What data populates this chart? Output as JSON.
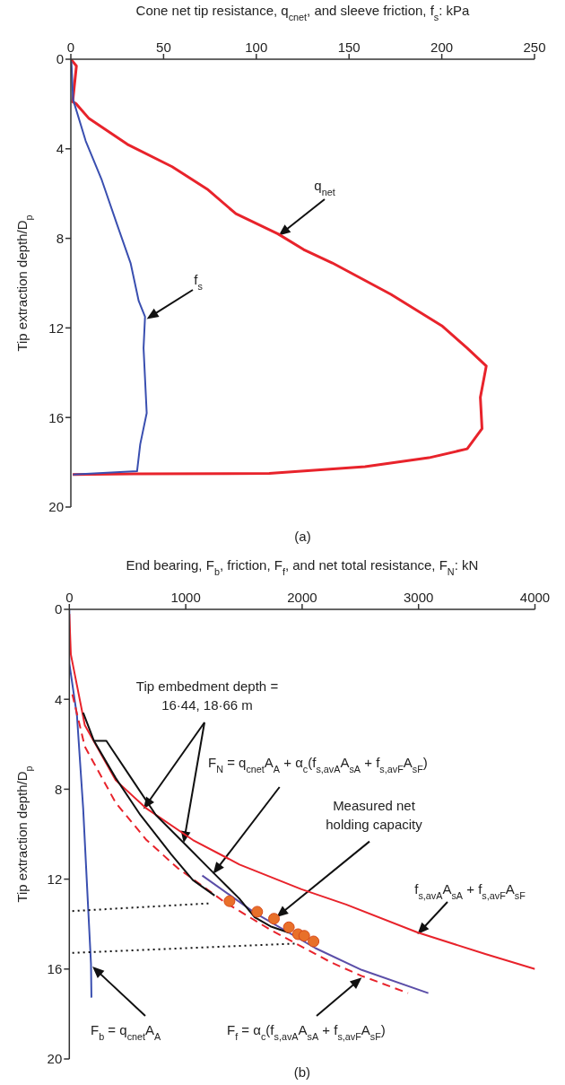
{
  "chart_data": [
    {
      "type": "line",
      "title": "(a)",
      "xlabel": "Cone net tip resistance, q$_{cnet}$, and sleeve friction, f$_{s}$: kPa",
      "ylabel": "Tip extraction depth/D$_{p}$",
      "xlim": [
        0,
        250
      ],
      "xticks": [
        0,
        50,
        100,
        150,
        200,
        250
      ],
      "ylim": [
        20,
        0
      ],
      "yticks": [
        0,
        4,
        8,
        12,
        16,
        20
      ],
      "grid": false,
      "legend": false,
      "series": [
        {
          "color": "#e8232b",
          "x": [
            0,
            3,
            1,
            3,
            9.8,
            30.5,
            54.6,
            73.5,
            89,
            111.7,
            125.5,
            141,
            172.6,
            200,
            213.7,
            224,
            220.8,
            221.7,
            213.7,
            193,
            158.6,
            107,
            34,
            1
          ],
          "values": [
            0,
            0.3,
            1.9,
            2,
            2.65,
            3.8,
            4.8,
            5.8,
            6.9,
            7.8,
            8.5,
            9.1,
            10.5,
            11.9,
            12.9,
            13.7,
            15.1,
            16.5,
            17.4,
            17.8,
            18.2,
            18.5,
            18.52,
            18.55
          ]
        },
        {
          "color": "#3a4fb0",
          "x": [
            0.3,
            1.2,
            8,
            16.7,
            25,
            32.2,
            36.6,
            40,
            39.2,
            40.9,
            37.4,
            35.7,
            1.2
          ],
          "values": [
            0.1,
            1.8,
            3.65,
            5.4,
            7.4,
            9.1,
            10.8,
            11.5,
            12.9,
            15.8,
            17.2,
            18.4,
            18.55
          ]
        }
      ],
      "annotations": [
        "q$_{net}$",
        "f$_{s}$"
      ]
    },
    {
      "type": "line",
      "title": "(b)",
      "xlabel": "End bearing, F$_{b}$, friction, F$_{f}$, and net total resistance, F$_{N}$: kN",
      "ylabel": "Tip extraction depth/D$_{p}$",
      "xlim": [
        0,
        4000
      ],
      "xticks": [
        0,
        1000,
        2000,
        3000,
        4000
      ],
      "ylim": [
        20,
        0
      ],
      "yticks": [
        0,
        4,
        8,
        12,
        16,
        20
      ],
      "grid": false,
      "legend": false,
      "series": [
        {
          "color": "#3a4fb0",
          "x": [
            0,
            0,
            66,
            119,
            159,
            186,
            190
          ],
          "values": [
            0,
            2.4,
            4.75,
            8.86,
            13,
            15.76,
            17.27
          ]
        },
        {
          "color": "#e8232b",
          "x": [
            0,
            13,
            133,
            398,
            663,
            1062,
            1462,
            1994,
            2378,
            2991,
            3573,
            4000
          ],
          "values": [
            0.2,
            2,
            5.15,
            7.6,
            8.86,
            10.26,
            11.35,
            12.45,
            13.13,
            14.37,
            15.33,
            16
          ]
        },
        {
          "color": "#e8232b",
          "line_style": "dashed",
          "x": [
            26,
            133,
            398,
            663,
            929,
            1328,
            1726,
            2247,
            2509,
            2910
          ],
          "values": [
            3.78,
            6.1,
            8.6,
            10.26,
            11.5,
            13,
            14.25,
            15.7,
            16.3,
            17.07
          ]
        },
        {
          "color": "#5b4ea8",
          "x": [
            1142,
            1593,
            2114,
            2512,
            3084
          ],
          "values": [
            11.84,
            13.5,
            15.07,
            16.04,
            17.07
          ]
        },
        {
          "color": "#111111",
          "x": [
            119,
            212,
            398,
            611,
            876,
            1061,
            1248
          ],
          "values": [
            4.6,
            5.85,
            7.5,
            9.15,
            10.9,
            12.04,
            12.73
          ]
        },
        {
          "color": "#111111",
          "x": [
            212,
            318,
            531,
            744,
            1010,
            1248,
            1461,
            1593,
            1728,
            1886
          ],
          "values": [
            5.85,
            5.85,
            7.5,
            9.15,
            10.53,
            11.77,
            12.87,
            13.7,
            14.1,
            14.38
          ]
        },
        {
          "color": "#111111",
          "line_style": "dotted",
          "x": [
            26,
            1195
          ],
          "values": [
            13.42,
            13.08
          ]
        },
        {
          "color": "#111111",
          "line_style": "dotted",
          "x": [
            26,
            1939
          ],
          "values": [
            15.28,
            14.87
          ]
        },
        {
          "type": "scatter",
          "marker": "circle",
          "color": "#e8702a",
          "x": [
            1376,
            1614,
            1758,
            1886,
            1965,
            2018,
            2098
          ],
          "values": [
            12.98,
            13.45,
            13.76,
            14.14,
            14.45,
            14.52,
            14.77
          ]
        }
      ],
      "annotations": [
        "Tip embedment depth =\n16·44, 18·66 m",
        "F$_{N}$ = q$_{cnet}$A$_{A}$ + α$_{c}$(f$_{s,avA}$A$_{sA}$ + f$_{s,avF}$A$_{sF}$)",
        "Measured net\nholding capacity",
        "f$_{s,avA}$A$_{sA}$ + f$_{s,avF}$A$_{sF}$",
        "F$_{f}$ = α$_{c}$(f$_{s,avA}$A$_{sA}$ + f$_{s,avF}$A$_{sF}$)",
        "F$_{b}$ = q$_{cnet}$A$_{A}$"
      ]
    }
  ]
}
